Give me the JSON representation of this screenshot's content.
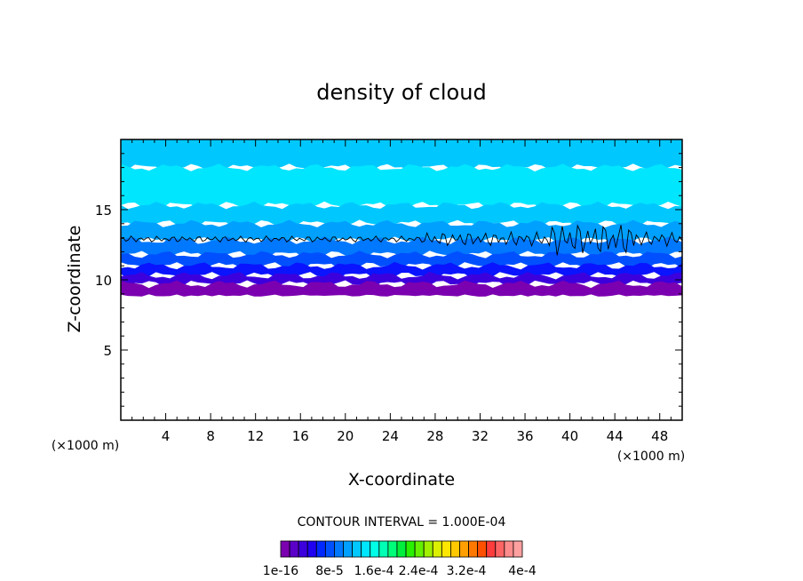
{
  "chart_data": {
    "type": "heatmap",
    "title": "density of cloud",
    "xlabel": "X-coordinate",
    "ylabel": "Z-coordinate",
    "x_unit": "(×1000 m)",
    "z_unit": "(×1000 m)",
    "xlim": [
      0,
      50
    ],
    "ylim": [
      0,
      20
    ],
    "x_ticks": [
      4,
      8,
      12,
      16,
      20,
      24,
      28,
      32,
      36,
      40,
      44,
      48
    ],
    "y_ticks": [
      5,
      10,
      15
    ],
    "contour_interval_text": "CONTOUR INTERVAL = 1.000E-04",
    "colorbar": {
      "labels": [
        "1e-16",
        "8e-5",
        "1.6e-4",
        "2.4e-4",
        "3.2e-4",
        "4e-4"
      ],
      "colors": [
        "#7b00b0",
        "#5a00c8",
        "#3c00dc",
        "#2000f0",
        "#0028ff",
        "#0050ff",
        "#0078ff",
        "#00a0ff",
        "#00c8ff",
        "#00e6ff",
        "#00ffe6",
        "#00ffb4",
        "#00ff78",
        "#00f03c",
        "#28f000",
        "#64f000",
        "#a0f000",
        "#dcf000",
        "#ffe600",
        "#ffc800",
        "#ffa000",
        "#ff7800",
        "#ff5000",
        "#ff3c3c",
        "#ff6464",
        "#ff8c8c",
        "#ffa0a0"
      ]
    },
    "layers": [
      {
        "z_bottom": 8.8,
        "z_top": 9.7,
        "color": "#7b00b0"
      },
      {
        "z_bottom": 9.7,
        "z_top": 10.3,
        "color": "#3c00dc"
      },
      {
        "z_bottom": 10.3,
        "z_top": 11.0,
        "color": "#0a14ff"
      },
      {
        "z_bottom": 11.0,
        "z_top": 11.8,
        "color": "#0050ff"
      },
      {
        "z_bottom": 11.8,
        "z_top": 12.8,
        "color": "#0078ff"
      },
      {
        "z_bottom": 12.8,
        "z_top": 14.0,
        "color": "#00a0ff"
      },
      {
        "z_bottom": 14.0,
        "z_top": 15.3,
        "color": "#00c8ff"
      },
      {
        "z_bottom": 15.3,
        "z_top": 18.0,
        "color": "#00e6ff"
      },
      {
        "z_bottom": 18.0,
        "z_top": 20.0,
        "color": "#00c8ff"
      }
    ],
    "contour_line_z": 12.9
  }
}
